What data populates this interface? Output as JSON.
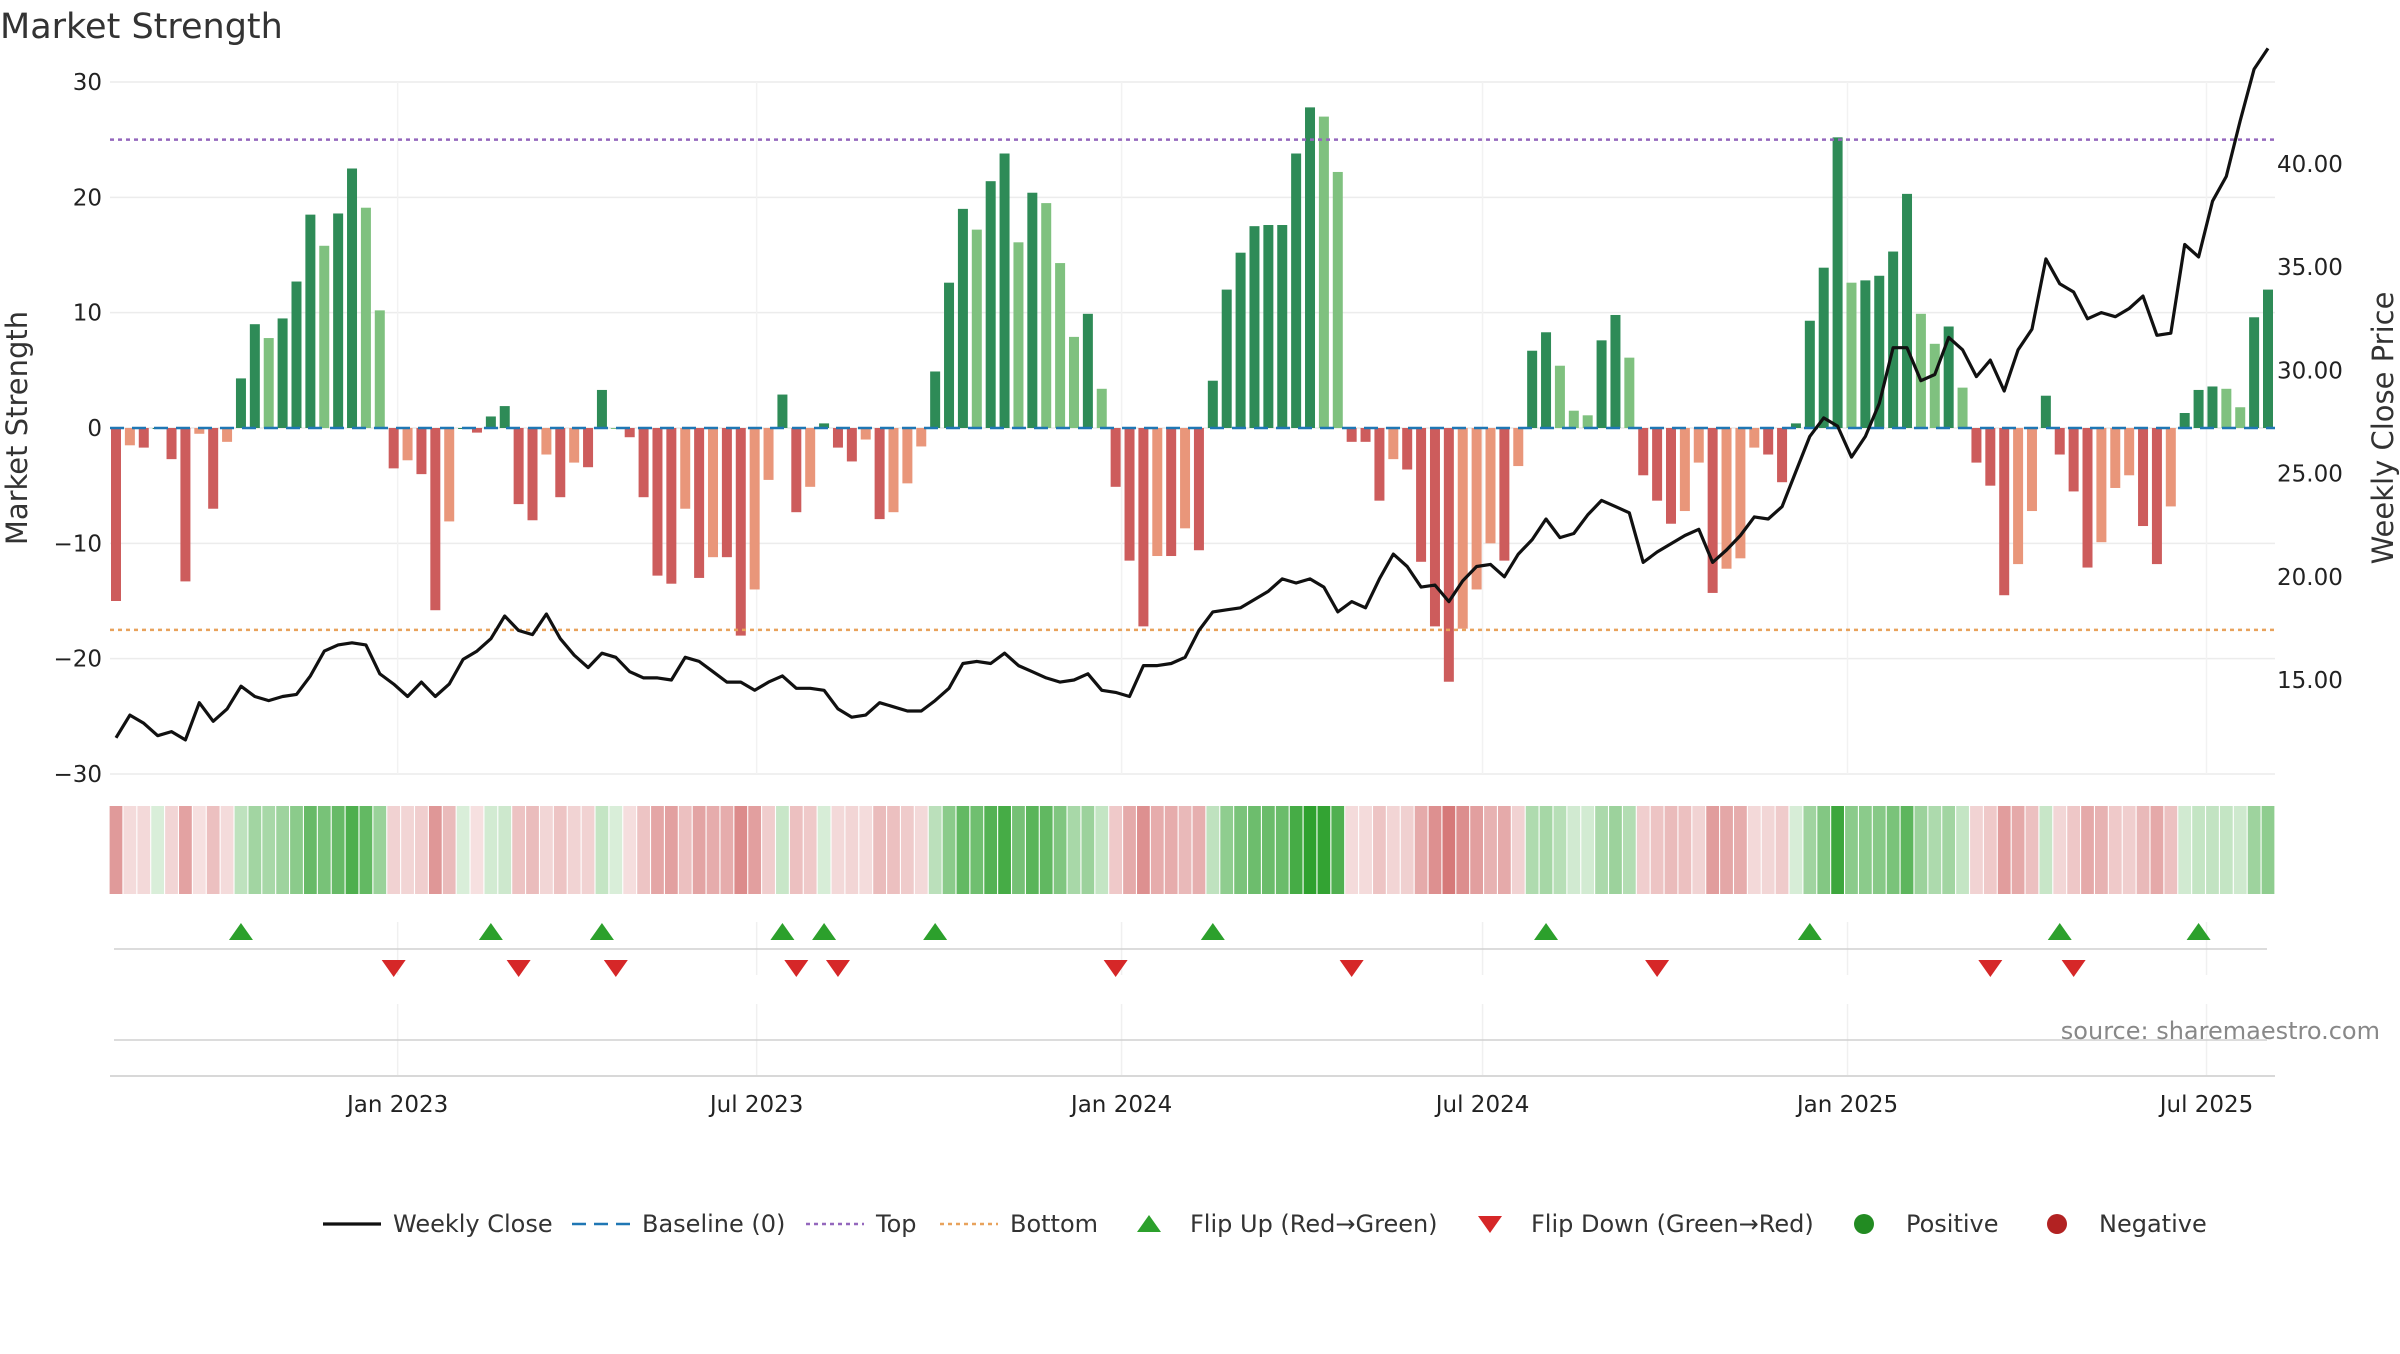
{
  "chart_data": {
    "type": "bar",
    "title": "Market Strength",
    "ylabel": "Market Strength",
    "y2label": "Weekly Close Price",
    "ylim": [
      -30,
      30
    ],
    "y2lim": [
      10,
      45
    ],
    "yticks": [
      "30",
      "20",
      "10",
      "0",
      "−10",
      "−20",
      "−30"
    ],
    "y2ticks": [
      "40.00",
      "35.00",
      "30.00",
      "25.00",
      "20.00",
      "15.00"
    ],
    "xticks": [
      "Jan 2023",
      "Jul 2023",
      "Jan 2024",
      "Jul 2024",
      "Jan 2025",
      "Jul 2025"
    ],
    "top_line": 25,
    "bottom_line": -17.5,
    "grid": true,
    "legend_position": "bottom",
    "source": "source: sharemaestro.com",
    "colors": {
      "strong_positive": "#2e8b57",
      "weak_positive": "#7fc17f",
      "strong_negative": "#cd5c5c",
      "weak_negative": "#e9967a",
      "baseline": "#1f77b4",
      "top": "#9467bd",
      "bottom": "#e8a25c",
      "close": "#111111",
      "flip_up": "#2ca02c",
      "flip_down": "#d62728",
      "positive": "#228b22",
      "negative": "#b22222"
    },
    "strength": [
      -15,
      -1.5,
      -1.7,
      0,
      -2.7,
      -13.3,
      -0.5,
      -7,
      -1.2,
      4.3,
      9,
      7.8,
      9.5,
      12.7,
      18.5,
      15.8,
      18.6,
      22.5,
      19.1,
      10.2,
      -3.5,
      -2.8,
      -4,
      -15.8,
      -8.1,
      0,
      -0.4,
      1,
      1.9,
      -6.6,
      -8,
      -2.3,
      -6,
      -3,
      -3.4,
      3.3,
      0,
      -0.8,
      -6,
      -12.8,
      -13.5,
      -7,
      -13,
      -11.2,
      -11.2,
      -18,
      -14,
      -4.5,
      2.9,
      -7.3,
      -5.1,
      0.4,
      -1.7,
      -2.9,
      -1,
      -7.9,
      -7.3,
      -4.8,
      -1.6,
      4.9,
      12.6,
      19,
      17.2,
      21.4,
      23.8,
      16.1,
      20.4,
      19.5,
      14.3,
      7.9,
      9.9,
      3.4,
      -5.1,
      -11.5,
      -17.2,
      -11.1,
      -11.1,
      -8.7,
      -10.6,
      4.1,
      12,
      15.2,
      17.5,
      17.6,
      17.6,
      23.8,
      27.8,
      27,
      22.2,
      -1.2,
      -1.2,
      -6.3,
      -2.7,
      -3.6,
      -11.6,
      -17.2,
      -22,
      -17.4,
      -14,
      -10,
      -11.5,
      -3.3,
      6.7,
      8.3,
      5.4,
      1.5,
      1.1,
      7.6,
      9.8,
      6.1,
      -4.1,
      -6.3,
      -8.3,
      -7.2,
      -3,
      -14.3,
      -12.2,
      -11.3,
      -1.7,
      -2.3,
      -4.7,
      0.4,
      9.3,
      13.9,
      25.2,
      12.6,
      12.8,
      13.2,
      15.3,
      20.3,
      9.9,
      7.3,
      8.8,
      3.5,
      -3,
      -5,
      -14.5,
      -11.8,
      -7.2,
      2.8,
      -2.3,
      -5.5,
      -12.1,
      -9.9,
      -5.2,
      -4.1,
      -8.5,
      -11.8,
      -6.8,
      1.3,
      3.3,
      3.6,
      3.4,
      1.8,
      9.6,
      12
    ],
    "weekly_close": [
      12.2,
      13.3,
      12.9,
      12.3,
      12.5,
      12.1,
      13.9,
      13,
      13.6,
      14.7,
      14.2,
      14,
      14.2,
      14.3,
      15.2,
      16.4,
      16.7,
      16.8,
      16.7,
      15.3,
      14.8,
      14.2,
      14.9,
      14.2,
      14.8,
      16,
      16.4,
      17,
      18.1,
      17.4,
      17.2,
      18.2,
      17,
      16.2,
      15.6,
      16.3,
      16.1,
      15.4,
      15.1,
      15.1,
      15,
      16.1,
      15.9,
      15.4,
      14.9,
      14.9,
      14.5,
      14.9,
      15.2,
      14.6,
      14.6,
      14.5,
      13.6,
      13.2,
      13.3,
      13.9,
      13.7,
      13.5,
      13.5,
      14,
      14.6,
      15.8,
      15.9,
      15.8,
      16.3,
      15.7,
      15.4,
      15.1,
      14.9,
      15,
      15.3,
      14.5,
      14.4,
      14.2,
      15.7,
      15.7,
      15.8,
      16.1,
      17.4,
      18.3,
      18.4,
      18.5,
      18.9,
      19.3,
      19.9,
      19.7,
      19.9,
      19.5,
      18.3,
      18.8,
      18.5,
      19.9,
      21.1,
      20.5,
      19.5,
      19.6,
      18.8,
      19.8,
      20.5,
      20.6,
      20,
      21.1,
      21.8,
      22.8,
      21.9,
      22.1,
      23,
      23.7,
      23.4,
      23.1,
      20.7,
      21.2,
      21.6,
      22,
      22.3,
      20.7,
      21.3,
      22,
      22.9,
      22.8,
      23.4,
      25.1,
      26.8,
      27.7,
      27.3,
      25.8,
      26.8,
      28.4,
      31.1,
      31.1,
      29.5,
      29.8,
      31.6,
      31,
      29.7,
      30.5,
      29,
      31,
      32,
      35.4,
      34.2,
      33.8,
      32.5,
      32.8,
      32.6,
      33,
      33.6,
      31.7,
      31.8,
      36.1,
      35.5,
      38.2,
      39.4,
      42.1,
      44.6,
      45.6
    ],
    "flip_up_weeks": [
      9,
      27,
      35,
      48,
      51,
      59,
      79,
      103,
      122,
      140,
      150
    ],
    "flip_down_weeks": [
      20,
      29,
      36,
      49,
      52,
      72,
      89,
      111,
      135,
      141
    ],
    "week_start": "2022-08-12",
    "legend": [
      "Weekly Close",
      "Baseline (0)",
      "Top",
      "Bottom",
      "Flip Up (Red→Green)",
      "Flip Down (Green→Red)",
      "Positive",
      "Negative"
    ]
  }
}
